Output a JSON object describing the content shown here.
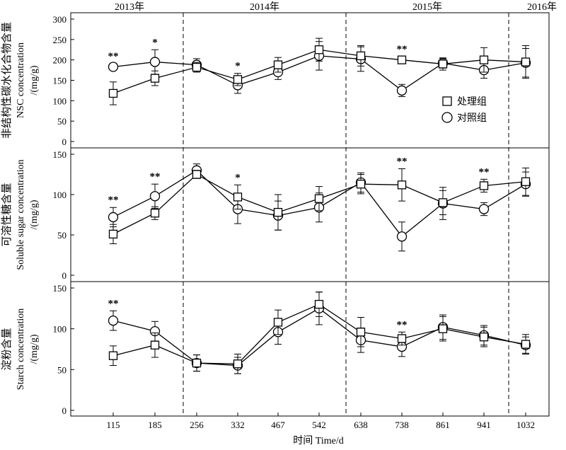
{
  "chart_data": {
    "type": "line",
    "categories": [
      "115",
      "185",
      "256",
      "332",
      "467",
      "542",
      "638",
      "738",
      "861",
      "941",
      "1032"
    ],
    "xlabel": "时间 Time/d",
    "year_labels": [
      "2013年",
      "2014年",
      "2015年",
      "2016年"
    ],
    "year_dividers_after_category": [
      "185",
      "542",
      "941"
    ],
    "legend": {
      "placement": "top-right of top panel",
      "entries": [
        "处理组",
        "对照组"
      ]
    },
    "panels": [
      {
        "id": "nsc",
        "ylabel_lines": [
          "非结构性碳水化合物含量",
          "NSC concentration",
          "/(mg/g)"
        ],
        "ylim": [
          0,
          300
        ],
        "yticks": [
          "0",
          "50",
          "100",
          "150",
          "200",
          "250",
          "300"
        ],
        "series": [
          {
            "name": "处理组",
            "marker": "square",
            "values": [
              118,
              155,
              182,
              152,
              188,
              225,
              210,
              200,
              190,
              200,
              195
            ],
            "errors": [
              28,
              18,
              12,
              15,
              18,
              28,
              25,
              8,
              15,
              30,
              40
            ]
          },
          {
            "name": "对照组",
            "marker": "circle",
            "values": [
              183,
              195,
              188,
              138,
              170,
              210,
              202,
              125,
              192,
              175,
              193
            ],
            "errors": [
              8,
              30,
              15,
              20,
              18,
              35,
              30,
              15,
              12,
              20,
              35
            ]
          }
        ],
        "significance": [
          {
            "category": "115",
            "label": "**"
          },
          {
            "category": "185",
            "label": "*"
          },
          {
            "category": "332",
            "label": "*"
          },
          {
            "category": "738",
            "label": "**"
          }
        ]
      },
      {
        "id": "soluble_sugar",
        "ylabel_lines": [
          "可溶性糖含量",
          "Soluble sugar concentration",
          "/(mg/g)"
        ],
        "ylim": [
          0,
          150
        ],
        "yticks": [
          "0",
          "50",
          "100",
          "150"
        ],
        "series": [
          {
            "name": "处理组",
            "marker": "square",
            "values": [
              51,
              77,
              125,
              97,
              78,
              95,
              113,
              112,
              90,
              111,
              116
            ],
            "errors": [
              12,
              8,
              5,
              15,
              22,
              15,
              12,
              20,
              15,
              8,
              17
            ]
          },
          {
            "name": "对照组",
            "marker": "circle",
            "values": [
              72,
              98,
              130,
              82,
              74,
              84,
              115,
              48,
              89,
              82,
              113
            ],
            "errors": [
              12,
              15,
              8,
              18,
              18,
              18,
              12,
              18,
              20,
              8,
              15
            ]
          }
        ],
        "significance": [
          {
            "category": "115",
            "label": "**"
          },
          {
            "category": "185",
            "label": "**"
          },
          {
            "category": "332",
            "label": "*"
          },
          {
            "category": "738",
            "label": "**"
          },
          {
            "category": "941",
            "label": "**"
          }
        ]
      },
      {
        "id": "starch",
        "ylabel_lines": [
          "淀粉含量",
          "Starch concentration",
          "/(mg/g)"
        ],
        "ylim": [
          0,
          150
        ],
        "yticks": [
          "0",
          "50",
          "100",
          "150"
        ],
        "series": [
          {
            "name": "处理组",
            "marker": "square",
            "values": [
              67,
              80,
              58,
              57,
              108,
              130,
              96,
              88,
              100,
              90,
              81
            ],
            "errors": [
              12,
              15,
              10,
              12,
              15,
              15,
              18,
              8,
              15,
              12,
              12
            ]
          },
          {
            "name": "对照组",
            "marker": "circle",
            "values": [
              110,
              97,
              58,
              55,
              96,
              125,
              86,
              78,
              102,
              92,
              80
            ],
            "errors": [
              12,
              12,
              10,
              10,
              15,
              20,
              15,
              12,
              15,
              12,
              10
            ]
          }
        ],
        "significance": [
          {
            "category": "115",
            "label": "**"
          },
          {
            "category": "738",
            "label": "**"
          }
        ]
      }
    ]
  }
}
